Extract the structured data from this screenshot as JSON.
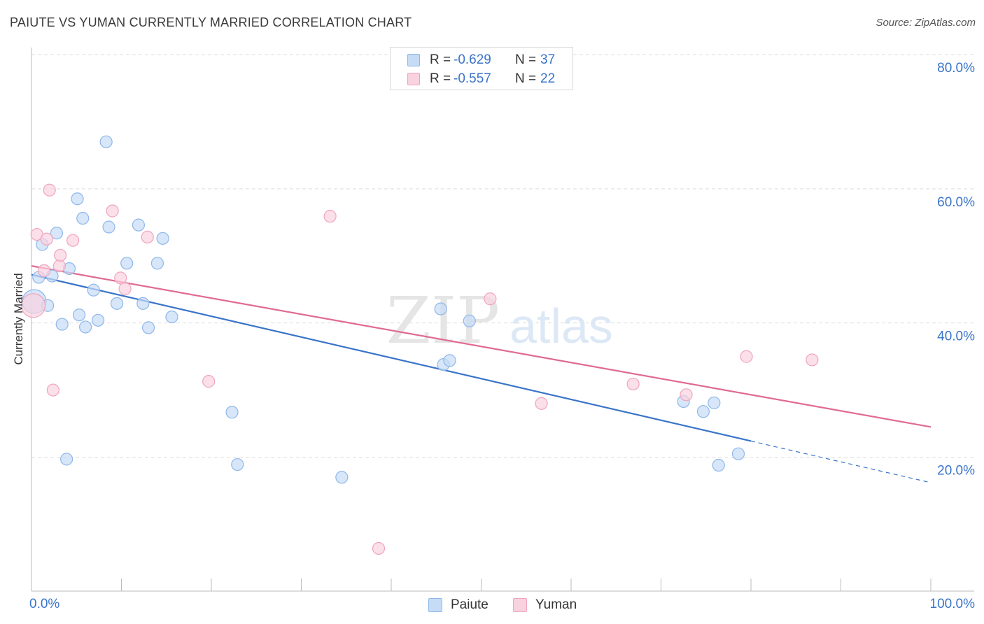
{
  "title": "PAIUTE VS YUMAN CURRENTLY MARRIED CORRELATION CHART",
  "source": "Source: ZipAtlas.com",
  "watermark": {
    "zip": "ZIP",
    "atlas": "atlas"
  },
  "legend": {
    "rows": [
      {
        "r_label": "R =",
        "r_value": "-0.629",
        "n_label": "N =",
        "n_value": "37"
      },
      {
        "r_label": "R =",
        "r_value": "-0.557",
        "n_label": "N =",
        "n_value": "22"
      }
    ]
  },
  "chart_data": {
    "type": "scatter",
    "title": "PAIUTE VS YUMAN CURRENTLY MARRIED CORRELATION CHART",
    "xlabel": "",
    "ylabel": "Currently Married",
    "xlim": [
      0,
      100
    ],
    "ylim": [
      0,
      83
    ],
    "x_tick_labels": [
      "0.0%",
      "100.0%"
    ],
    "y_ticks": [
      20,
      40,
      60,
      80
    ],
    "y_tick_labels": [
      "20.0%",
      "40.0%",
      "60.0%",
      "80.0%"
    ],
    "grid": true,
    "legend_position": "top-center",
    "series": [
      {
        "name": "Paiute",
        "color": "#8fb8ea",
        "fill": "#c6dbf5",
        "line_color": "#3a74c9",
        "r": -0.629,
        "n": 37,
        "trend": {
          "x0": 0,
          "y0": 47.2,
          "x1": 80,
          "y1": 22.4,
          "dash_to_x": 100,
          "dash_to_y": 16.2
        },
        "points": [
          [
            0.3,
            43.2
          ],
          [
            0.8,
            46.8
          ],
          [
            1.2,
            51.7
          ],
          [
            1.8,
            42.6
          ],
          [
            2.3,
            47.0
          ],
          [
            2.8,
            53.4
          ],
          [
            3.4,
            39.8
          ],
          [
            3.9,
            19.7
          ],
          [
            4.2,
            48.1
          ],
          [
            5.1,
            58.5
          ],
          [
            5.3,
            41.2
          ],
          [
            5.7,
            55.6
          ],
          [
            6.0,
            39.4
          ],
          [
            6.9,
            44.9
          ],
          [
            7.4,
            40.4
          ],
          [
            8.3,
            67.0
          ],
          [
            8.6,
            54.3
          ],
          [
            9.5,
            42.9
          ],
          [
            10.6,
            48.9
          ],
          [
            11.9,
            54.6
          ],
          [
            12.4,
            42.9
          ],
          [
            13.0,
            39.3
          ],
          [
            14.0,
            48.9
          ],
          [
            14.6,
            52.6
          ],
          [
            15.6,
            40.9
          ],
          [
            22.3,
            26.7
          ],
          [
            22.9,
            18.9
          ],
          [
            34.5,
            17.0
          ],
          [
            45.5,
            42.1
          ],
          [
            45.8,
            33.8
          ],
          [
            46.5,
            34.4
          ],
          [
            48.7,
            40.3
          ],
          [
            72.5,
            28.3
          ],
          [
            74.7,
            26.8
          ],
          [
            75.9,
            28.1
          ],
          [
            76.4,
            18.8
          ],
          [
            78.6,
            20.5
          ]
        ]
      },
      {
        "name": "Yuman",
        "color": "#f0a5bd",
        "fill": "#f9d2df",
        "line_color": "#e06a92",
        "r": -0.557,
        "n": 22,
        "trend": {
          "x0": 0,
          "y0": 48.5,
          "x1": 100,
          "y1": 24.5
        },
        "points": [
          [
            0.2,
            42.6
          ],
          [
            0.6,
            53.2
          ],
          [
            1.4,
            47.8
          ],
          [
            1.7,
            52.5
          ],
          [
            2.0,
            59.8
          ],
          [
            2.4,
            30.0
          ],
          [
            3.1,
            48.5
          ],
          [
            3.2,
            50.1
          ],
          [
            4.6,
            52.3
          ],
          [
            9.0,
            56.7
          ],
          [
            9.9,
            46.7
          ],
          [
            10.4,
            45.1
          ],
          [
            12.9,
            52.8
          ],
          [
            19.7,
            31.3
          ],
          [
            33.2,
            55.9
          ],
          [
            38.6,
            6.4
          ],
          [
            51.0,
            43.6
          ],
          [
            56.7,
            28.0
          ],
          [
            66.9,
            30.9
          ],
          [
            72.8,
            29.3
          ],
          [
            79.5,
            35.0
          ],
          [
            86.8,
            34.5
          ]
        ]
      }
    ]
  }
}
